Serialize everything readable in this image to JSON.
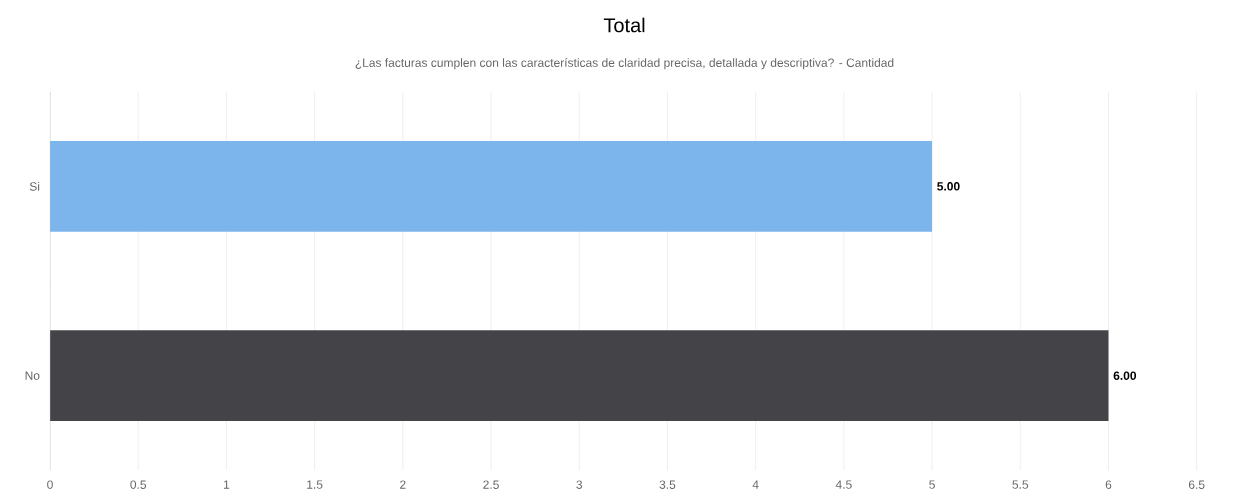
{
  "chart_data": {
    "type": "bar",
    "orientation": "horizontal",
    "title": "Total",
    "subtitle": "¿Las facturas cumplen con las características de claridad precisa, detallada y descriptiva? - Cantidad",
    "categories": [
      "Si",
      "No"
    ],
    "values": [
      5,
      6
    ],
    "colors": [
      "#7cb5ec",
      "#434348"
    ],
    "value_labels": [
      "5.00",
      "6.00"
    ],
    "xlim": [
      0,
      6.5
    ],
    "xticks": [
      0,
      0.5,
      1,
      1.5,
      2,
      2.5,
      3,
      3.5,
      4,
      4.5,
      5,
      5.5,
      6,
      6.5
    ],
    "grid": "x"
  }
}
